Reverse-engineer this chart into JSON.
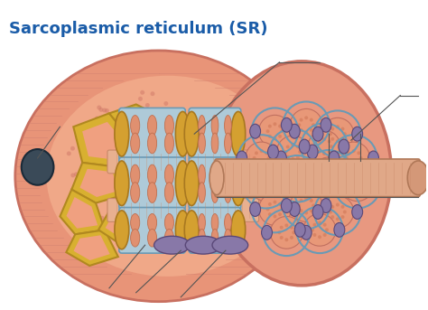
{
  "title": "Sarcoplasmic reticulum (SR)",
  "title_color": "#1A5CA8",
  "title_fontsize": 13,
  "bg_color": "#ffffff",
  "muscle_outer_color": "#E89478",
  "muscle_outer_edge": "#C87060",
  "muscle_inner_color": "#F0A888",
  "muscle_pink_dots": "#D07868",
  "sr_blue_color": "#AECAD8",
  "sr_blue_edge": "#6A9AB5",
  "sr_ring_color": "#D4A030",
  "sr_ring_edge": "#A87820",
  "myofibril_color": "#E8B090",
  "myofibril_stripe": "#C88868",
  "myofibril_end_color": "#E09888",
  "network_color": "#D8B030",
  "network_edge": "#B08820",
  "dark_node_color": "#3A4A58",
  "dark_node_edge": "#1A2A38",
  "purple_color": "#8878A8",
  "purple_edge": "#5A4878",
  "tubule_color": "#E0A888",
  "tubule_stripe": "#C88868",
  "tubule_edge": "#B07858",
  "cross_section_bg": "#E89880",
  "cross_section_edge": "#C87060",
  "myofibril_dot_color": "#E89878",
  "myofibril_dot_edge": "#C07060",
  "line_color": "#555555"
}
